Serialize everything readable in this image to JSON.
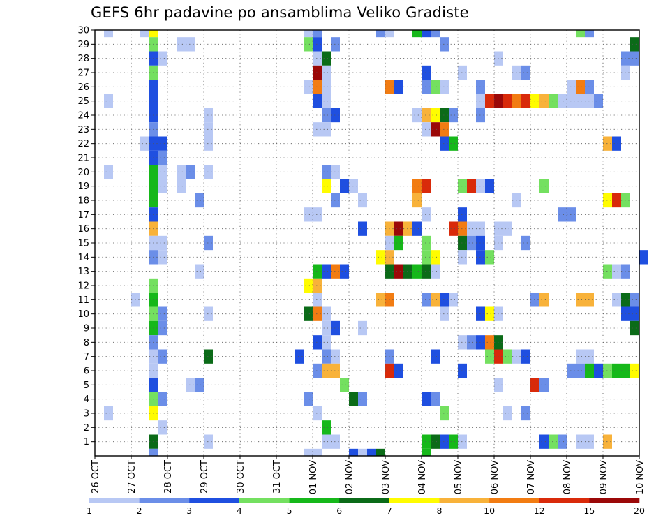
{
  "title": "GEFS 6hr padavine po ansamblima Veliko Gradiste",
  "chart_data": {
    "type": "heatmap",
    "title": "GEFS 6hr padavine po ansamblima Veliko Gradiste",
    "ylabel": "",
    "xlabel": "",
    "y_members": [
      1,
      2,
      3,
      4,
      5,
      6,
      7,
      8,
      9,
      10,
      11,
      12,
      13,
      14,
      15,
      16,
      17,
      18,
      19,
      20,
      21,
      22,
      23,
      24,
      25,
      26,
      27,
      28,
      29,
      30
    ],
    "x_step_count": 60,
    "x_step_hours": 6,
    "x_ticks": [
      {
        "label": "26 OCT",
        "step": 0
      },
      {
        "label": "27 OCT",
        "step": 4
      },
      {
        "label": "28 OCT",
        "step": 8
      },
      {
        "label": "29 OCT",
        "step": 12
      },
      {
        "label": "30 OCT",
        "step": 16
      },
      {
        "label": "31 OCT",
        "step": 20
      },
      {
        "label": "01 NOV",
        "step": 24
      },
      {
        "label": "02 NOV",
        "step": 28
      },
      {
        "label": "03 NOV",
        "step": 32
      },
      {
        "label": "04 NOV",
        "step": 36
      },
      {
        "label": "05 NOV",
        "step": 40
      },
      {
        "label": "06 NOV",
        "step": 44
      },
      {
        "label": "07 NOV",
        "step": 48
      },
      {
        "label": "08 NOV",
        "step": 52
      },
      {
        "label": "09 NOV",
        "step": 56
      },
      {
        "label": "10 NOV",
        "step": 60
      }
    ],
    "grid": true,
    "colorbar": {
      "labels": [
        "1",
        "2",
        "3",
        "4",
        "5",
        "6",
        "7",
        "8",
        "10",
        "12",
        "15",
        "20"
      ],
      "colors": [
        "#b8c8f4",
        "#6b8ee8",
        "#1f4fe0",
        "#74e060",
        "#16b81a",
        "#0b6b18",
        "#fffc00",
        "#f8b23a",
        "#f27c12",
        "#d92a0a",
        "#9b0808"
      ]
    },
    "cells": [
      [
        30,
        1,
        1
      ],
      [
        30,
        5,
        1
      ],
      [
        30,
        6,
        7
      ],
      [
        30,
        23,
        1
      ],
      [
        30,
        24,
        2
      ],
      [
        30,
        31,
        2
      ],
      [
        30,
        32,
        1
      ],
      [
        30,
        35,
        5
      ],
      [
        30,
        36,
        3
      ],
      [
        30,
        37,
        2
      ],
      [
        30,
        53,
        4
      ],
      [
        30,
        54,
        2
      ],
      [
        29,
        6,
        4
      ],
      [
        29,
        9,
        1
      ],
      [
        29,
        10,
        1
      ],
      [
        29,
        23,
        4
      ],
      [
        29,
        24,
        3
      ],
      [
        29,
        26,
        2
      ],
      [
        29,
        38,
        2
      ],
      [
        29,
        59,
        6
      ],
      [
        28,
        6,
        3
      ],
      [
        28,
        7,
        1
      ],
      [
        28,
        24,
        1
      ],
      [
        28,
        25,
        6
      ],
      [
        28,
        44,
        1
      ],
      [
        28,
        58,
        2
      ],
      [
        28,
        59,
        2
      ],
      [
        27,
        6,
        4
      ],
      [
        27,
        24,
        11
      ],
      [
        27,
        25,
        1
      ],
      [
        27,
        36,
        3
      ],
      [
        27,
        40,
        1
      ],
      [
        27,
        46,
        1
      ],
      [
        27,
        47,
        2
      ],
      [
        27,
        58,
        1
      ],
      [
        26,
        6,
        3
      ],
      [
        26,
        23,
        1
      ],
      [
        26,
        24,
        9
      ],
      [
        26,
        25,
        1
      ],
      [
        26,
        32,
        9
      ],
      [
        26,
        33,
        3
      ],
      [
        26,
        36,
        2
      ],
      [
        26,
        37,
        4
      ],
      [
        26,
        38,
        1
      ],
      [
        26,
        42,
        2
      ],
      [
        26,
        52,
        1
      ],
      [
        26,
        53,
        9
      ],
      [
        26,
        54,
        2
      ],
      [
        25,
        1,
        1
      ],
      [
        25,
        6,
        3
      ],
      [
        25,
        24,
        3
      ],
      [
        25,
        25,
        1
      ],
      [
        25,
        42,
        1
      ],
      [
        25,
        43,
        10
      ],
      [
        25,
        44,
        11
      ],
      [
        25,
        45,
        10
      ],
      [
        25,
        46,
        9
      ],
      [
        25,
        47,
        10
      ],
      [
        25,
        48,
        7
      ],
      [
        25,
        49,
        8
      ],
      [
        25,
        50,
        4
      ],
      [
        25,
        51,
        1
      ],
      [
        25,
        52,
        1
      ],
      [
        25,
        53,
        1
      ],
      [
        25,
        54,
        1
      ],
      [
        25,
        55,
        2
      ],
      [
        24,
        6,
        3
      ],
      [
        24,
        12,
        1
      ],
      [
        24,
        25,
        2
      ],
      [
        24,
        26,
        3
      ],
      [
        24,
        35,
        1
      ],
      [
        24,
        36,
        8
      ],
      [
        24,
        37,
        7
      ],
      [
        24,
        38,
        6
      ],
      [
        24,
        39,
        2
      ],
      [
        24,
        42,
        2
      ],
      [
        23,
        6,
        2
      ],
      [
        23,
        12,
        1
      ],
      [
        23,
        24,
        1
      ],
      [
        23,
        25,
        1
      ],
      [
        23,
        36,
        1
      ],
      [
        23,
        37,
        11
      ],
      [
        23,
        38,
        9
      ],
      [
        22,
        5,
        1
      ],
      [
        22,
        6,
        3
      ],
      [
        22,
        7,
        3
      ],
      [
        22,
        12,
        1
      ],
      [
        22,
        38,
        3
      ],
      [
        22,
        39,
        5
      ],
      [
        22,
        56,
        8
      ],
      [
        22,
        57,
        3
      ],
      [
        21,
        6,
        3
      ],
      [
        21,
        7,
        2
      ],
      [
        20,
        1,
        1
      ],
      [
        20,
        6,
        5
      ],
      [
        20,
        7,
        1
      ],
      [
        20,
        9,
        1
      ],
      [
        20,
        10,
        2
      ],
      [
        20,
        12,
        1
      ],
      [
        20,
        25,
        2
      ],
      [
        20,
        26,
        1
      ],
      [
        19,
        6,
        5
      ],
      [
        19,
        7,
        1
      ],
      [
        19,
        9,
        1
      ],
      [
        19,
        25,
        7
      ],
      [
        19,
        27,
        3
      ],
      [
        19,
        28,
        1
      ],
      [
        19,
        35,
        9
      ],
      [
        19,
        36,
        10
      ],
      [
        19,
        40,
        4
      ],
      [
        19,
        41,
        10
      ],
      [
        19,
        42,
        1
      ],
      [
        19,
        43,
        3
      ],
      [
        19,
        49,
        4
      ],
      [
        18,
        6,
        5
      ],
      [
        18,
        11,
        2
      ],
      [
        18,
        26,
        2
      ],
      [
        18,
        29,
        1
      ],
      [
        18,
        35,
        8
      ],
      [
        18,
        46,
        1
      ],
      [
        18,
        56,
        7
      ],
      [
        18,
        57,
        10
      ],
      [
        18,
        58,
        4
      ],
      [
        17,
        6,
        3
      ],
      [
        17,
        23,
        1
      ],
      [
        17,
        24,
        1
      ],
      [
        17,
        36,
        1
      ],
      [
        17,
        40,
        3
      ],
      [
        17,
        51,
        2
      ],
      [
        17,
        52,
        2
      ],
      [
        16,
        6,
        8
      ],
      [
        16,
        29,
        3
      ],
      [
        16,
        32,
        8
      ],
      [
        16,
        33,
        11
      ],
      [
        16,
        34,
        8
      ],
      [
        16,
        35,
        3
      ],
      [
        16,
        39,
        10
      ],
      [
        16,
        40,
        9
      ],
      [
        16,
        41,
        1
      ],
      [
        16,
        42,
        1
      ],
      [
        16,
        44,
        1
      ],
      [
        16,
        45,
        1
      ],
      [
        15,
        6,
        1
      ],
      [
        15,
        7,
        1
      ],
      [
        15,
        12,
        2
      ],
      [
        15,
        32,
        1
      ],
      [
        15,
        33,
        5
      ],
      [
        15,
        36,
        4
      ],
      [
        15,
        40,
        6
      ],
      [
        15,
        41,
        2
      ],
      [
        15,
        42,
        3
      ],
      [
        15,
        44,
        1
      ],
      [
        15,
        47,
        2
      ],
      [
        14,
        6,
        2
      ],
      [
        14,
        7,
        1
      ],
      [
        14,
        31,
        7
      ],
      [
        14,
        32,
        8
      ],
      [
        14,
        36,
        4
      ],
      [
        14,
        37,
        7
      ],
      [
        14,
        40,
        1
      ],
      [
        14,
        42,
        3
      ],
      [
        14,
        43,
        4
      ],
      [
        14,
        60,
        3
      ],
      [
        13,
        11,
        1
      ],
      [
        13,
        24,
        5
      ],
      [
        13,
        25,
        3
      ],
      [
        13,
        26,
        9
      ],
      [
        13,
        27,
        3
      ],
      [
        13,
        32,
        6
      ],
      [
        13,
        33,
        11
      ],
      [
        13,
        34,
        6
      ],
      [
        13,
        35,
        5
      ],
      [
        13,
        36,
        6
      ],
      [
        13,
        37,
        1
      ],
      [
        13,
        56,
        4
      ],
      [
        13,
        57,
        1
      ],
      [
        13,
        58,
        2
      ],
      [
        12,
        6,
        4
      ],
      [
        12,
        23,
        7
      ],
      [
        12,
        24,
        8
      ],
      [
        11,
        4,
        1
      ],
      [
        11,
        6,
        5
      ],
      [
        11,
        24,
        1
      ],
      [
        11,
        31,
        8
      ],
      [
        11,
        32,
        9
      ],
      [
        11,
        36,
        2
      ],
      [
        11,
        37,
        8
      ],
      [
        11,
        38,
        3
      ],
      [
        11,
        39,
        1
      ],
      [
        11,
        48,
        2
      ],
      [
        11,
        49,
        8
      ],
      [
        11,
        53,
        8
      ],
      [
        11,
        54,
        8
      ],
      [
        11,
        57,
        1
      ],
      [
        11,
        58,
        6
      ],
      [
        11,
        59,
        2
      ],
      [
        10,
        6,
        4
      ],
      [
        10,
        7,
        2
      ],
      [
        10,
        12,
        1
      ],
      [
        10,
        23,
        6
      ],
      [
        10,
        24,
        9
      ],
      [
        10,
        25,
        1
      ],
      [
        10,
        38,
        1
      ],
      [
        10,
        42,
        3
      ],
      [
        10,
        43,
        7
      ],
      [
        10,
        44,
        1
      ],
      [
        10,
        58,
        3
      ],
      [
        10,
        59,
        3
      ],
      [
        9,
        6,
        5
      ],
      [
        9,
        7,
        2
      ],
      [
        9,
        25,
        1
      ],
      [
        9,
        26,
        3
      ],
      [
        9,
        29,
        1
      ],
      [
        9,
        59,
        6
      ],
      [
        8,
        6,
        2
      ],
      [
        8,
        24,
        3
      ],
      [
        8,
        25,
        1
      ],
      [
        8,
        40,
        1
      ],
      [
        8,
        41,
        2
      ],
      [
        8,
        42,
        3
      ],
      [
        8,
        43,
        9
      ],
      [
        8,
        44,
        6
      ],
      [
        7,
        6,
        1
      ],
      [
        7,
        7,
        2
      ],
      [
        7,
        12,
        6
      ],
      [
        7,
        22,
        3
      ],
      [
        7,
        25,
        2
      ],
      [
        7,
        26,
        1
      ],
      [
        7,
        32,
        2
      ],
      [
        7,
        37,
        3
      ],
      [
        7,
        43,
        4
      ],
      [
        7,
        44,
        10
      ],
      [
        7,
        45,
        4
      ],
      [
        7,
        46,
        1
      ],
      [
        7,
        47,
        3
      ],
      [
        7,
        53,
        1
      ],
      [
        7,
        54,
        1
      ],
      [
        6,
        6,
        1
      ],
      [
        6,
        24,
        2
      ],
      [
        6,
        25,
        8
      ],
      [
        6,
        26,
        8
      ],
      [
        6,
        32,
        10
      ],
      [
        6,
        33,
        3
      ],
      [
        6,
        40,
        3
      ],
      [
        6,
        52,
        2
      ],
      [
        6,
        53,
        2
      ],
      [
        6,
        54,
        5
      ],
      [
        6,
        55,
        3
      ],
      [
        6,
        56,
        4
      ],
      [
        6,
        57,
        5
      ],
      [
        6,
        58,
        5
      ],
      [
        6,
        59,
        7
      ],
      [
        5,
        6,
        3
      ],
      [
        5,
        10,
        1
      ],
      [
        5,
        11,
        2
      ],
      [
        5,
        27,
        4
      ],
      [
        5,
        44,
        1
      ],
      [
        5,
        48,
        10
      ],
      [
        5,
        49,
        2
      ],
      [
        4,
        6,
        4
      ],
      [
        4,
        7,
        2
      ],
      [
        4,
        23,
        2
      ],
      [
        4,
        28,
        6
      ],
      [
        4,
        29,
        2
      ],
      [
        4,
        36,
        3
      ],
      [
        4,
        37,
        2
      ],
      [
        3,
        1,
        1
      ],
      [
        3,
        6,
        7
      ],
      [
        3,
        24,
        1
      ],
      [
        3,
        38,
        4
      ],
      [
        3,
        45,
        1
      ],
      [
        3,
        47,
        2
      ],
      [
        2,
        7,
        1
      ],
      [
        2,
        25,
        5
      ],
      [
        1,
        6,
        6
      ],
      [
        1,
        12,
        1
      ],
      [
        1,
        25,
        1
      ],
      [
        1,
        26,
        1
      ],
      [
        1,
        36,
        5
      ],
      [
        1,
        37,
        6
      ],
      [
        1,
        38,
        3
      ],
      [
        1,
        39,
        5
      ],
      [
        1,
        40,
        1
      ],
      [
        1,
        49,
        3
      ],
      [
        1,
        50,
        4
      ],
      [
        1,
        51,
        2
      ],
      [
        1,
        53,
        1
      ],
      [
        1,
        54,
        1
      ],
      [
        1,
        56,
        8
      ],
      [
        0,
        6,
        2
      ],
      [
        0,
        23,
        1
      ],
      [
        0,
        24,
        1
      ],
      [
        0,
        28,
        3
      ],
      [
        0,
        29,
        1
      ],
      [
        0,
        30,
        3
      ],
      [
        0,
        31,
        6
      ],
      [
        0,
        36,
        5
      ]
    ]
  }
}
